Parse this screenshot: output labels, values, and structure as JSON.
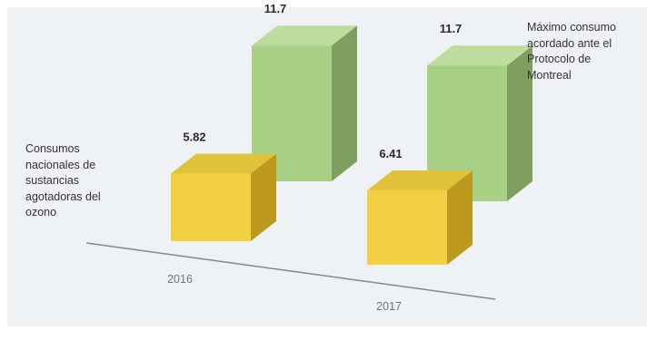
{
  "chart_data": {
    "type": "bar",
    "categories": [
      "2016",
      "2017"
    ],
    "series": [
      {
        "name": "Consumos nacionales de sustancias agotadoras del ozono",
        "values": [
          5.82,
          6.41
        ],
        "value_labels": [
          "5.82",
          "6.41"
        ],
        "color": "#e8c53e"
      },
      {
        "name": "Máximo consumo acordado ante el Protocolo de Montreal",
        "values": [
          11.7,
          11.7
        ],
        "value_labels": [
          "11.7",
          "11.7"
        ],
        "color": "#9fc97a"
      }
    ],
    "title": "",
    "xlabel": "",
    "ylabel": "",
    "ylim": [
      0,
      13
    ],
    "grid": false,
    "three_d": true,
    "legend_placement": "inline-left-and-right"
  },
  "legend": {
    "left_text": "Consumos\nnacionales de\nsustancias\nagotadoras del\nozono",
    "right_text": "Máximo consumo\nacordado ante el\nProtocolo de\nMontreal"
  },
  "colors": {
    "panel_background": "#eef2f5",
    "axis_line": "#7a8a99",
    "tick_text": "#6d7780",
    "value_text": "#2a2a2a",
    "yellow_front": "#f2d046",
    "yellow_top": "#e2c23a",
    "yellow_side": "#bd9a1e",
    "green_front": "#a7d085",
    "green_top": "#bfdc9f",
    "green_side": "#7f9f60"
  }
}
